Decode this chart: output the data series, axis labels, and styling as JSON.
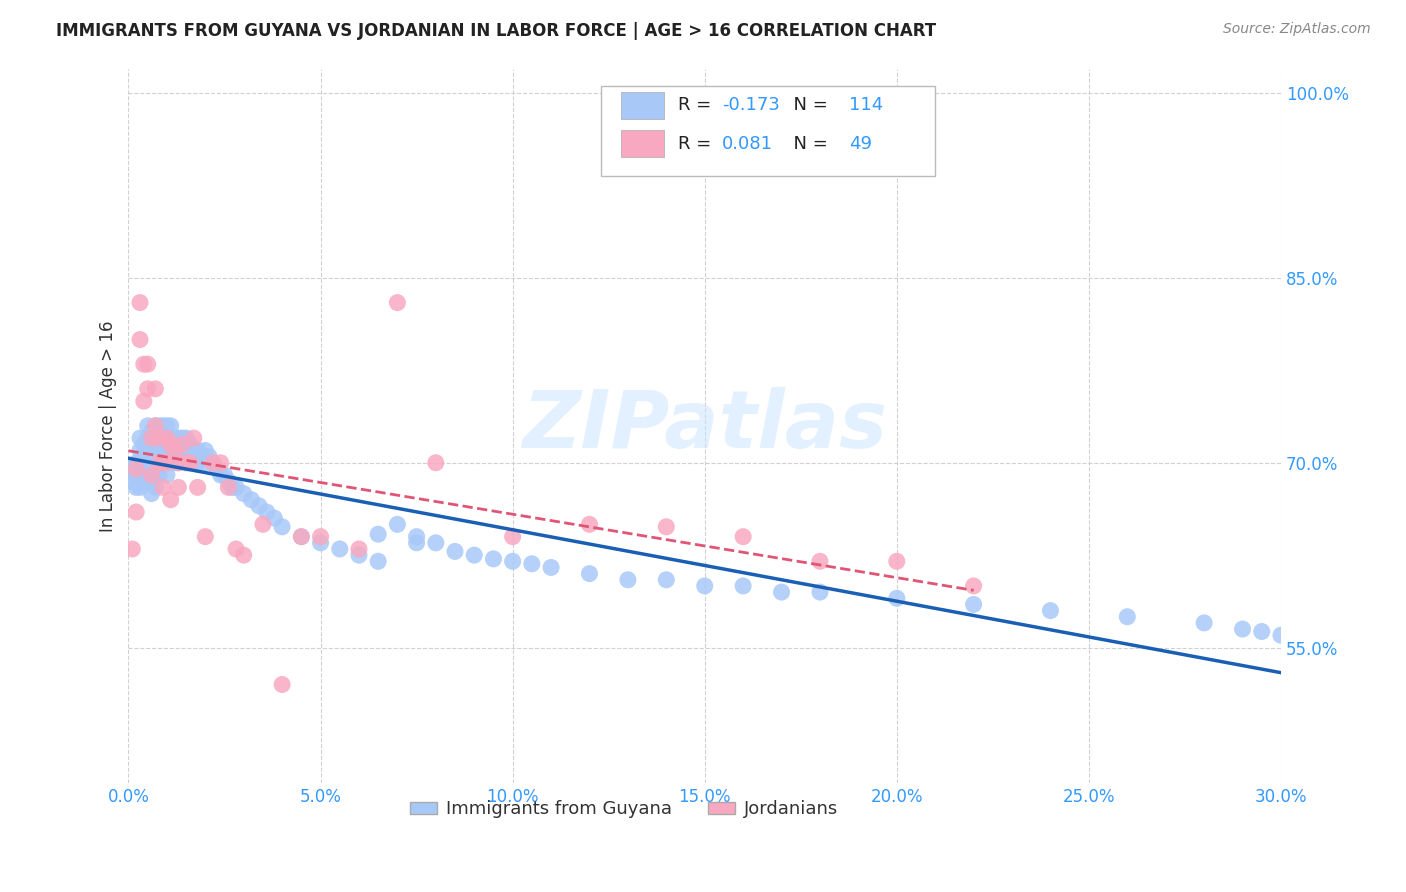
{
  "title": "IMMIGRANTS FROM GUYANA VS JORDANIAN IN LABOR FORCE | AGE > 16 CORRELATION CHART",
  "source": "Source: ZipAtlas.com",
  "ylabel": "In Labor Force | Age > 16",
  "xlim": [
    0.0,
    0.3
  ],
  "ylim": [
    0.44,
    1.02
  ],
  "ytick_values": [
    0.55,
    0.7,
    0.85,
    1.0
  ],
  "xtick_values": [
    0.0,
    0.05,
    0.1,
    0.15,
    0.2,
    0.25,
    0.3
  ],
  "guyana_color": "#a8c8f8",
  "jordan_color": "#f8a8c0",
  "guyana_line_color": "#1a5fb4",
  "jordan_line_color": "#e05575",
  "guyana_R": -0.173,
  "guyana_N": 114,
  "jordan_R": 0.081,
  "jordan_N": 49,
  "legend_guyana_label": "Immigrants from Guyana",
  "legend_jordan_label": "Jordanians",
  "watermark": "ZIPatlas",
  "background_color": "#ffffff",
  "guyana_x": [
    0.001,
    0.001,
    0.002,
    0.002,
    0.002,
    0.003,
    0.003,
    0.003,
    0.003,
    0.003,
    0.004,
    0.004,
    0.004,
    0.004,
    0.005,
    0.005,
    0.005,
    0.005,
    0.005,
    0.005,
    0.006,
    0.006,
    0.006,
    0.006,
    0.006,
    0.006,
    0.007,
    0.007,
    0.007,
    0.007,
    0.007,
    0.007,
    0.008,
    0.008,
    0.008,
    0.008,
    0.008,
    0.009,
    0.009,
    0.009,
    0.009,
    0.01,
    0.01,
    0.01,
    0.01,
    0.01,
    0.011,
    0.011,
    0.011,
    0.012,
    0.012,
    0.012,
    0.013,
    0.013,
    0.013,
    0.014,
    0.014,
    0.015,
    0.015,
    0.015,
    0.016,
    0.016,
    0.017,
    0.017,
    0.018,
    0.018,
    0.019,
    0.02,
    0.02,
    0.021,
    0.022,
    0.023,
    0.024,
    0.025,
    0.026,
    0.027,
    0.028,
    0.03,
    0.032,
    0.034,
    0.036,
    0.038,
    0.04,
    0.045,
    0.05,
    0.055,
    0.06,
    0.065,
    0.07,
    0.075,
    0.08,
    0.09,
    0.1,
    0.11,
    0.12,
    0.14,
    0.16,
    0.18,
    0.2,
    0.22,
    0.24,
    0.26,
    0.28,
    0.29,
    0.295,
    0.3,
    0.15,
    0.17,
    0.13,
    0.105,
    0.095,
    0.085,
    0.075,
    0.065
  ],
  "guyana_y": [
    0.695,
    0.685,
    0.7,
    0.69,
    0.68,
    0.72,
    0.71,
    0.7,
    0.69,
    0.68,
    0.715,
    0.705,
    0.695,
    0.685,
    0.73,
    0.72,
    0.71,
    0.7,
    0.695,
    0.685,
    0.725,
    0.715,
    0.705,
    0.695,
    0.685,
    0.675,
    0.73,
    0.72,
    0.71,
    0.7,
    0.69,
    0.68,
    0.73,
    0.72,
    0.71,
    0.7,
    0.69,
    0.73,
    0.72,
    0.71,
    0.7,
    0.73,
    0.72,
    0.71,
    0.7,
    0.69,
    0.73,
    0.72,
    0.71,
    0.72,
    0.71,
    0.7,
    0.72,
    0.71,
    0.7,
    0.72,
    0.71,
    0.72,
    0.71,
    0.7,
    0.715,
    0.705,
    0.71,
    0.7,
    0.71,
    0.7,
    0.705,
    0.71,
    0.7,
    0.705,
    0.7,
    0.695,
    0.69,
    0.69,
    0.685,
    0.68,
    0.68,
    0.675,
    0.67,
    0.665,
    0.66,
    0.655,
    0.648,
    0.64,
    0.635,
    0.63,
    0.625,
    0.62,
    0.65,
    0.64,
    0.635,
    0.625,
    0.62,
    0.615,
    0.61,
    0.605,
    0.6,
    0.595,
    0.59,
    0.585,
    0.58,
    0.575,
    0.57,
    0.565,
    0.563,
    0.56,
    0.6,
    0.595,
    0.605,
    0.618,
    0.622,
    0.628,
    0.635,
    0.642
  ],
  "jordan_x": [
    0.001,
    0.002,
    0.002,
    0.003,
    0.003,
    0.004,
    0.004,
    0.005,
    0.005,
    0.006,
    0.006,
    0.007,
    0.007,
    0.008,
    0.008,
    0.009,
    0.009,
    0.01,
    0.01,
    0.011,
    0.011,
    0.012,
    0.013,
    0.013,
    0.014,
    0.015,
    0.016,
    0.017,
    0.018,
    0.02,
    0.022,
    0.024,
    0.026,
    0.028,
    0.03,
    0.035,
    0.04,
    0.045,
    0.05,
    0.06,
    0.07,
    0.08,
    0.1,
    0.12,
    0.14,
    0.16,
    0.18,
    0.2,
    0.22
  ],
  "jordan_y": [
    0.63,
    0.695,
    0.66,
    0.8,
    0.83,
    0.78,
    0.75,
    0.78,
    0.76,
    0.72,
    0.69,
    0.73,
    0.76,
    0.7,
    0.72,
    0.7,
    0.68,
    0.72,
    0.7,
    0.715,
    0.67,
    0.71,
    0.7,
    0.68,
    0.715,
    0.7,
    0.7,
    0.72,
    0.68,
    0.64,
    0.7,
    0.7,
    0.68,
    0.63,
    0.625,
    0.65,
    0.52,
    0.64,
    0.64,
    0.63,
    0.83,
    0.7,
    0.64,
    0.65,
    0.648,
    0.64,
    0.62,
    0.62,
    0.6
  ]
}
